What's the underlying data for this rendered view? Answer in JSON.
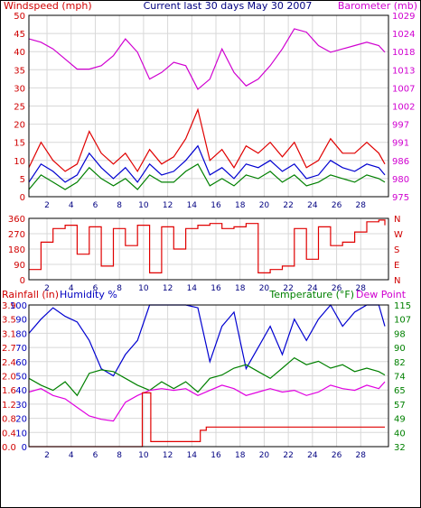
{
  "chart_data": [
    {
      "type": "line",
      "title": "Current last 30 days May 30 2007",
      "y_left_label": "Windspeed (mph)",
      "y_right_label": "Barometer (mb)",
      "ylim_left": [
        0,
        50
      ],
      "ylim_right": [
        975,
        1029
      ],
      "y_left_ticks": [
        "0",
        "5",
        "10",
        "15",
        "20",
        "25",
        "30",
        "35",
        "40",
        "45",
        "50"
      ],
      "y_right_ticks": [
        "975",
        "980",
        "986",
        "991",
        "997",
        "1002",
        "1007",
        "1013",
        "1018",
        "1024",
        "1029"
      ],
      "x_ticks": [
        "2",
        "4",
        "6",
        "8",
        "10",
        "12",
        "14",
        "16",
        "18",
        "20",
        "22",
        "24",
        "26",
        "28"
      ],
      "xlim": [
        0.5,
        30.3
      ],
      "grid": true,
      "series": [
        {
          "color": "#d000d0",
          "axis": "right",
          "x": [
            0.5,
            1.5,
            2.5,
            3.5,
            4.5,
            5.5,
            6.5,
            7.5,
            8.5,
            9.5,
            10.5,
            11.5,
            12.5,
            13.5,
            14.5,
            15.5,
            16.5,
            17.5,
            18.5,
            19.5,
            20.5,
            21.5,
            22.5,
            23.5,
            24.5,
            25.5,
            26.5,
            27.5,
            28.5,
            29.5,
            30
          ],
          "values": [
            1022,
            1021,
            1019,
            1016,
            1013,
            1013,
            1014,
            1017,
            1022,
            1018,
            1010,
            1012,
            1015,
            1014,
            1007,
            1010,
            1019,
            1012,
            1008,
            1010,
            1014,
            1019,
            1025,
            1024,
            1020,
            1018,
            1019,
            1020,
            1021,
            1020,
            1018
          ]
        },
        {
          "color": "#e00000",
          "axis": "left",
          "x": [
            0.5,
            1.5,
            2.5,
            3.5,
            4.5,
            5.5,
            6.5,
            7.5,
            8.5,
            9.5,
            10.5,
            11.5,
            12.5,
            13.5,
            14.5,
            15.5,
            16.5,
            17.5,
            18.5,
            19.5,
            20.5,
            21.5,
            22.5,
            23.5,
            24.5,
            25.5,
            26.5,
            27.5,
            28.5,
            29.5,
            30
          ],
          "values": [
            8,
            15,
            10,
            7,
            9,
            18,
            12,
            9,
            12,
            7,
            13,
            9,
            11,
            16,
            24,
            10,
            13,
            8,
            14,
            12,
            15,
            11,
            15,
            8,
            10,
            16,
            12,
            12,
            15,
            12,
            9
          ]
        },
        {
          "color": "#0000d0",
          "axis": "left",
          "x": [
            0.5,
            1.5,
            2.5,
            3.5,
            4.5,
            5.5,
            6.5,
            7.5,
            8.5,
            9.5,
            10.5,
            11.5,
            12.5,
            13.5,
            14.5,
            15.5,
            16.5,
            17.5,
            18.5,
            19.5,
            20.5,
            21.5,
            22.5,
            23.5,
            24.5,
            25.5,
            26.5,
            27.5,
            28.5,
            29.5,
            30
          ],
          "values": [
            4,
            9,
            7,
            4,
            6,
            12,
            8,
            5,
            8,
            4,
            9,
            6,
            7,
            10,
            14,
            6,
            8,
            5,
            9,
            8,
            10,
            7,
            9,
            5,
            6,
            10,
            8,
            7,
            9,
            8,
            6
          ]
        },
        {
          "color": "#008000",
          "axis": "left",
          "x": [
            0.5,
            1.5,
            2.5,
            3.5,
            4.5,
            5.5,
            6.5,
            7.5,
            8.5,
            9.5,
            10.5,
            11.5,
            12.5,
            13.5,
            14.5,
            15.5,
            16.5,
            17.5,
            18.5,
            19.5,
            20.5,
            21.5,
            22.5,
            23.5,
            24.5,
            25.5,
            26.5,
            27.5,
            28.5,
            29.5,
            30
          ],
          "values": [
            2,
            6,
            4,
            2,
            4,
            8,
            5,
            3,
            5,
            2,
            6,
            4,
            4,
            7,
            9,
            3,
            5,
            3,
            6,
            5,
            7,
            4,
            6,
            3,
            4,
            6,
            5,
            4,
            6,
            5,
            4
          ]
        }
      ]
    },
    {
      "type": "line",
      "ylim": [
        0,
        360
      ],
      "y_left_ticks": [
        "0",
        "90",
        "180",
        "270",
        "360"
      ],
      "y_right_ticks": [
        "N",
        "E",
        "S",
        "W",
        "N"
      ],
      "x_ticks": [
        "2",
        "4",
        "6",
        "8",
        "10",
        "12",
        "14",
        "16",
        "18",
        "20",
        "22",
        "24",
        "26",
        "28"
      ],
      "xlim": [
        0.5,
        30.3
      ],
      "grid": true,
      "series": [
        {
          "color": "#e00000",
          "x": [
            0.5,
            1.5,
            2.5,
            3.5,
            4.5,
            5.5,
            6.5,
            7.5,
            8.5,
            9.5,
            10.5,
            11.5,
            12.5,
            13.5,
            14.5,
            15.5,
            16.5,
            17.5,
            18.5,
            19.5,
            20.5,
            21.5,
            22.5,
            23.5,
            24.5,
            25.5,
            26.5,
            27.5,
            28.5,
            29.5,
            30
          ],
          "values": [
            60,
            220,
            300,
            320,
            150,
            310,
            80,
            300,
            200,
            320,
            40,
            310,
            180,
            300,
            320,
            330,
            300,
            310,
            330,
            40,
            60,
            80,
            300,
            120,
            310,
            200,
            220,
            280,
            340,
            350,
            320
          ]
        }
      ]
    },
    {
      "type": "line",
      "y_left_label": "Rainfall (in)",
      "y_left2_label": "Humidity %",
      "y_right_label": "Temperature (°F)",
      "y_right2_label": "Dew Point",
      "ylim_rain": [
        0,
        3.9
      ],
      "ylim_humidity": [
        0,
        100
      ],
      "ylim_temp": [
        32,
        115
      ],
      "rain_ticks": [
        "0.0",
        "0.4",
        "0.8",
        "1.2",
        "1.6",
        "2.0",
        "2.4",
        "2.7",
        "3.1",
        "3.5",
        "3.9"
      ],
      "humidity_ticks": [
        "0",
        "10",
        "20",
        "30",
        "40",
        "50",
        "60",
        "70",
        "80",
        "90",
        "100"
      ],
      "temp_ticks": [
        "32",
        "40",
        "49",
        "57",
        "65",
        "74",
        "82",
        "90",
        "98",
        "107",
        "115"
      ],
      "x_ticks": [
        "2",
        "4",
        "6",
        "8",
        "10",
        "12",
        "14",
        "16",
        "18",
        "20",
        "22",
        "24",
        "26",
        "28"
      ],
      "xlim": [
        0.5,
        30.3
      ],
      "grid": true,
      "series": [
        {
          "color": "#0000d0",
          "axis": "humidity",
          "x": [
            0.5,
            1.5,
            2.5,
            3.5,
            4.5,
            5.5,
            6.5,
            7.5,
            8.5,
            9.5,
            10.5,
            11.5,
            12.5,
            13.5,
            14.5,
            15.5,
            16.5,
            17.5,
            18.5,
            19.5,
            20.5,
            21.5,
            22.5,
            23.5,
            24.5,
            25.5,
            26.5,
            27.5,
            28.5,
            29.5,
            30
          ],
          "values": [
            80,
            90,
            98,
            92,
            88,
            75,
            55,
            50,
            65,
            75,
            100,
            100,
            100,
            100,
            98,
            60,
            85,
            95,
            55,
            70,
            85,
            65,
            90,
            75,
            90,
            100,
            85,
            95,
            100,
            100,
            85
          ]
        },
        {
          "color": "#008000",
          "axis": "temp",
          "x": [
            0.5,
            1.5,
            2.5,
            3.5,
            4.5,
            5.5,
            6.5,
            7.5,
            8.5,
            9.5,
            10.5,
            11.5,
            12.5,
            13.5,
            14.5,
            15.5,
            16.5,
            17.5,
            18.5,
            19.5,
            20.5,
            21.5,
            22.5,
            23.5,
            24.5,
            25.5,
            26.5,
            27.5,
            28.5,
            29.5,
            30
          ],
          "values": [
            72,
            68,
            65,
            70,
            62,
            75,
            77,
            76,
            72,
            68,
            65,
            70,
            66,
            70,
            64,
            72,
            74,
            78,
            80,
            76,
            72,
            78,
            84,
            80,
            82,
            78,
            80,
            76,
            78,
            76,
            74
          ]
        },
        {
          "color": "#e000e0",
          "axis": "temp",
          "x": [
            0.5,
            1.5,
            2.5,
            3.5,
            4.5,
            5.5,
            6.5,
            7.5,
            8.5,
            9.5,
            10.5,
            11.5,
            12.5,
            13.5,
            14.5,
            15.5,
            16.5,
            17.5,
            18.5,
            19.5,
            20.5,
            21.5,
            22.5,
            23.5,
            24.5,
            25.5,
            26.5,
            27.5,
            28.5,
            29.5,
            30
          ],
          "values": [
            64,
            66,
            62,
            60,
            55,
            50,
            48,
            47,
            58,
            62,
            65,
            66,
            65,
            66,
            62,
            65,
            68,
            66,
            62,
            64,
            66,
            64,
            65,
            62,
            64,
            68,
            66,
            65,
            68,
            66,
            70
          ]
        },
        {
          "color": "#e00000",
          "axis": "rain",
          "x": [
            0.5,
            9.6,
            9.9,
            10.6,
            11.4,
            13.1,
            14.4,
            14.7,
            15.2,
            30
          ],
          "values": [
            0.0,
            0.0,
            1.48,
            0.14,
            0.14,
            0.14,
            0.14,
            0.45,
            0.54,
            0.54
          ]
        }
      ]
    }
  ]
}
